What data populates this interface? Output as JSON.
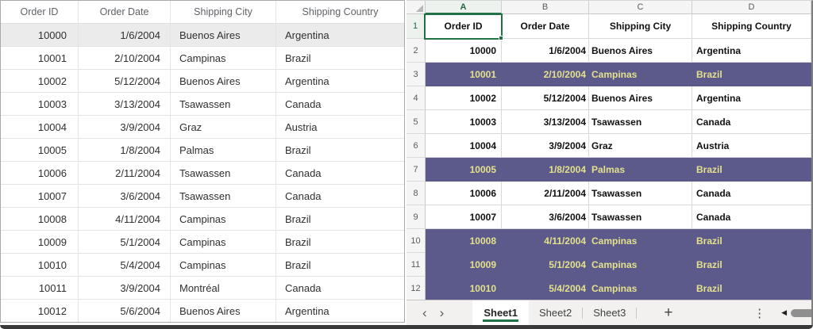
{
  "left_grid": {
    "columns": [
      "Order ID",
      "Order Date",
      "Shipping City",
      "Shipping Country"
    ],
    "rows": [
      [
        "10000",
        "1/6/2004",
        "Buenos Aires",
        "Argentina"
      ],
      [
        "10001",
        "2/10/2004",
        "Campinas",
        "Brazil"
      ],
      [
        "10002",
        "5/12/2004",
        "Buenos Aires",
        "Argentina"
      ],
      [
        "10003",
        "3/13/2004",
        "Tsawassen",
        "Canada"
      ],
      [
        "10004",
        "3/9/2004",
        "Graz",
        "Austria"
      ],
      [
        "10005",
        "1/8/2004",
        "Palmas",
        "Brazil"
      ],
      [
        "10006",
        "2/11/2004",
        "Tsawassen",
        "Canada"
      ],
      [
        "10007",
        "3/6/2004",
        "Tsawassen",
        "Canada"
      ],
      [
        "10008",
        "4/11/2004",
        "Campinas",
        "Brazil"
      ],
      [
        "10009",
        "5/1/2004",
        "Campinas",
        "Brazil"
      ],
      [
        "10010",
        "5/4/2004",
        "Campinas",
        "Brazil"
      ],
      [
        "10011",
        "3/9/2004",
        "Montréal",
        "Canada"
      ],
      [
        "10012",
        "5/6/2004",
        "Buenos Aires",
        "Argentina"
      ]
    ],
    "selected_row_index": 0
  },
  "spreadsheet": {
    "column_letters": [
      "A",
      "B",
      "C",
      "D"
    ],
    "selected_column": "A",
    "selected_cell": "A1",
    "rows": [
      {
        "n": "1",
        "cells": [
          "Order ID",
          "Order Date",
          "Shipping City",
          "Shipping Country"
        ],
        "highlighted": false,
        "is_header": true
      },
      {
        "n": "2",
        "cells": [
          "10000",
          "1/6/2004",
          "Buenos Aires",
          "Argentina"
        ],
        "highlighted": false
      },
      {
        "n": "3",
        "cells": [
          "10001",
          "2/10/2004",
          "Campinas",
          "Brazil"
        ],
        "highlighted": true
      },
      {
        "n": "4",
        "cells": [
          "10002",
          "5/12/2004",
          "Buenos Aires",
          "Argentina"
        ],
        "highlighted": false
      },
      {
        "n": "5",
        "cells": [
          "10003",
          "3/13/2004",
          "Tsawassen",
          "Canada"
        ],
        "highlighted": false
      },
      {
        "n": "6",
        "cells": [
          "10004",
          "3/9/2004",
          "Graz",
          "Austria"
        ],
        "highlighted": false
      },
      {
        "n": "7",
        "cells": [
          "10005",
          "1/8/2004",
          "Palmas",
          "Brazil"
        ],
        "highlighted": true
      },
      {
        "n": "8",
        "cells": [
          "10006",
          "2/11/2004",
          "Tsawassen",
          "Canada"
        ],
        "highlighted": false
      },
      {
        "n": "9",
        "cells": [
          "10007",
          "3/6/2004",
          "Tsawassen",
          "Canada"
        ],
        "highlighted": false
      },
      {
        "n": "10",
        "cells": [
          "10008",
          "4/11/2004",
          "Campinas",
          "Brazil"
        ],
        "highlighted": true
      },
      {
        "n": "11",
        "cells": [
          "10009",
          "5/1/2004",
          "Campinas",
          "Brazil"
        ],
        "highlighted": true
      },
      {
        "n": "12",
        "cells": [
          "10010",
          "5/4/2004",
          "Campinas",
          "Brazil"
        ],
        "highlighted": true
      }
    ],
    "colors": {
      "highlight_bg": "#5c5a8b",
      "highlight_text": "#e4e08c",
      "selection_green": "#217346"
    }
  },
  "sheet_bar": {
    "tabs": [
      {
        "label": "Sheet1",
        "active": true
      },
      {
        "label": "Sheet2",
        "active": false
      },
      {
        "label": "Sheet3",
        "active": false
      }
    ],
    "icons": {
      "prev": "‹",
      "next": "›",
      "add": "+",
      "more": "⋮",
      "scroll_left": "◀"
    }
  }
}
